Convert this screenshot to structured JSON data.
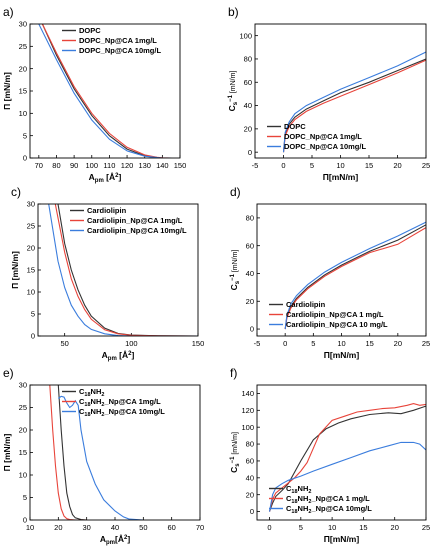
{
  "chart_data": [
    {
      "panel": "a)",
      "type": "line",
      "xlabel": "A",
      "xlabel_sub": "pm",
      "xlabel_unit": " [Å",
      "xlabel_sup": "2",
      "xlabel_close": "]",
      "ylabel": "Π [mN/m]",
      "xlim": [
        65,
        150
      ],
      "ylim": [
        0,
        30
      ],
      "xticks": [
        70,
        80,
        90,
        100,
        110,
        120,
        130,
        140,
        150
      ],
      "yticks": [
        0,
        5,
        10,
        15,
        20,
        25,
        30
      ],
      "legend_position": "top-right",
      "series": [
        {
          "name": "DOPC",
          "color": "#333333",
          "x": [
            72,
            80,
            90,
            100,
            110,
            120,
            130,
            137,
            140,
            145
          ],
          "y": [
            30,
            23,
            15.5,
            9.5,
            5,
            2,
            0.5,
            0.1,
            0,
            0
          ]
        },
        {
          "name": "DOPC_Np@CA 1mg/L",
          "color": "#e8443a",
          "x": [
            72,
            80,
            90,
            100,
            110,
            120,
            130,
            137,
            140,
            145
          ],
          "y": [
            30,
            23.5,
            16,
            10,
            5.5,
            2.4,
            0.7,
            0.15,
            0.05,
            0
          ]
        },
        {
          "name": "DOPC_Np@CA 10mg/L",
          "color": "#3b7ddd",
          "x": [
            70,
            80,
            90,
            100,
            110,
            120,
            130,
            137,
            140,
            145
          ],
          "y": [
            30,
            22,
            14.5,
            8.5,
            4.2,
            1.6,
            0.4,
            0.1,
            0,
            0
          ]
        }
      ]
    },
    {
      "panel": "b)",
      "type": "line",
      "xlabel": "Π[mN/m]",
      "ylabel": "C",
      "ylabel_sub": "s",
      "ylabel_sup": "−1",
      "ylabel_unit": " [mN/m]",
      "xlim": [
        -5,
        25
      ],
      "ylim": [
        -5,
        110
      ],
      "xticks": [
        -5,
        0,
        5,
        10,
        15,
        20,
        25
      ],
      "yticks": [
        0,
        20,
        40,
        60,
        80,
        100
      ],
      "legend_position": "bottom-right",
      "series": [
        {
          "name": "DOPC",
          "color": "#333333",
          "x": [
            0,
            0.3,
            1,
            2,
            4,
            7,
            10,
            15,
            20,
            25
          ],
          "y": [
            0,
            15,
            24,
            30,
            37,
            44,
            51,
            60,
            70,
            80
          ]
        },
        {
          "name": "DOPC_Np@CA 1mg/L",
          "color": "#e8443a",
          "x": [
            0,
            0.3,
            1,
            2,
            4,
            7,
            10,
            15,
            20,
            25
          ],
          "y": [
            0,
            14,
            22,
            28,
            35,
            42,
            48,
            58,
            68,
            79
          ]
        },
        {
          "name": "DOPC_Np@CA 10mg/L",
          "color": "#3b7ddd",
          "x": [
            0,
            0.3,
            1,
            2,
            4,
            7,
            10,
            15,
            20,
            25
          ],
          "y": [
            0,
            17,
            26,
            33,
            40,
            47,
            54,
            64,
            74,
            86
          ]
        }
      ]
    },
    {
      "panel": "c)",
      "type": "line",
      "xlabel": "A",
      "xlabel_sub": "pm",
      "xlabel_unit": " [Å",
      "xlabel_sup": "2",
      "xlabel_close": "]",
      "ylabel": "Π [mN/m]",
      "xlim": [
        30,
        150
      ],
      "ylim": [
        0,
        30
      ],
      "xticks": [
        50,
        100,
        150
      ],
      "yticks": [
        0,
        5,
        10,
        15,
        20,
        25,
        30
      ],
      "legend_position": "top-right",
      "series": [
        {
          "name": "Cardiolipin",
          "color": "#333333",
          "x": [
            45,
            50,
            55,
            60,
            65,
            70,
            80,
            90,
            100,
            120,
            150
          ],
          "y": [
            30,
            21,
            15,
            10.5,
            7,
            4.5,
            1.8,
            0.6,
            0.2,
            0.05,
            0
          ]
        },
        {
          "name": "Cardiolipin_Np@CA 1mg/L",
          "color": "#e8443a",
          "x": [
            43,
            50,
            55,
            60,
            65,
            70,
            80,
            90,
            100,
            120,
            150
          ],
          "y": [
            30,
            19,
            13,
            9,
            6,
            3.8,
            1.4,
            0.5,
            0.15,
            0.05,
            0
          ]
        },
        {
          "name": "Cardiolipin_Np@CA 10mg/L",
          "color": "#3b7ddd",
          "x": [
            38,
            45,
            50,
            55,
            60,
            65,
            70,
            80,
            90,
            100,
            150
          ],
          "y": [
            30,
            17,
            11,
            7,
            4.5,
            2.6,
            1.5,
            0.5,
            0.1,
            0,
            0
          ]
        }
      ]
    },
    {
      "panel": "d)",
      "type": "line",
      "xlabel": "Π[mN/m]",
      "ylabel": "C",
      "ylabel_sub": "s",
      "ylabel_sup": "−1",
      "ylabel_unit": " [mN/m]",
      "xlim": [
        -5,
        25
      ],
      "ylim": [
        -5,
        90
      ],
      "xticks": [
        -5,
        0,
        5,
        10,
        15,
        20,
        25
      ],
      "yticks": [
        0,
        20,
        40,
        60,
        80
      ],
      "legend_position": "bottom-right",
      "series": [
        {
          "name": "Cardiolipin",
          "color": "#333333",
          "x": [
            0,
            0.3,
            1,
            2,
            4,
            7,
            10,
            15,
            20,
            25
          ],
          "y": [
            0,
            9,
            16,
            22,
            30,
            39,
            46,
            56,
            64,
            75
          ]
        },
        {
          "name": "Cardiolipin_Np@CA 1 mg/L",
          "color": "#e8443a",
          "x": [
            0,
            0.3,
            1,
            2,
            4,
            7,
            10,
            15,
            20,
            25
          ],
          "y": [
            0,
            8,
            15,
            21,
            29,
            38,
            45,
            55,
            61,
            73
          ]
        },
        {
          "name": "Cardiolipin_Np@CA 10 mg/L",
          "color": "#3b7ddd",
          "x": [
            0,
            0.3,
            1,
            2,
            4,
            7,
            10,
            15,
            20,
            25
          ],
          "y": [
            0,
            10,
            18,
            24,
            32,
            41,
            48,
            58,
            67,
            77
          ]
        }
      ]
    },
    {
      "panel": "e)",
      "type": "line",
      "xlabel": "A",
      "xlabel_sub": "pm",
      "xlabel_unit": "[Å",
      "xlabel_sup": "2",
      "xlabel_close": "]",
      "ylabel": "Π [mN/m]",
      "xlim": [
        10,
        70
      ],
      "ylim": [
        0,
        30
      ],
      "xticks": [
        10,
        20,
        30,
        40,
        50,
        60,
        70
      ],
      "yticks": [
        0,
        5,
        10,
        15,
        20,
        25,
        30
      ],
      "legend_position": "top-right",
      "series": [
        {
          "name": "C18NH2",
          "label_parts": [
            "C",
            "18",
            "NH",
            "2",
            ""
          ],
          "color": "#333333",
          "x": [
            20,
            21,
            22,
            23,
            24,
            25,
            26,
            28,
            30
          ],
          "y": [
            30,
            20,
            12,
            6,
            3,
            1.2,
            0.5,
            0.1,
            0
          ]
        },
        {
          "name": "C18NH2_Np@CA 1mg/L",
          "label_parts": [
            "C",
            "18",
            "NH",
            "2",
            "_Np@CA 1mg/L"
          ],
          "color": "#e8443a",
          "x": [
            17,
            18,
            19,
            20,
            21,
            22,
            23,
            24,
            26,
            30
          ],
          "y": [
            30,
            20,
            12,
            6,
            2.5,
            0.9,
            0.3,
            0.1,
            0,
            0
          ]
        },
        {
          "name": "C18NH2_Np@CA 10mg/L",
          "label_parts": [
            "C",
            "18",
            "NH",
            "2",
            "_Np@CA 10mg/L"
          ],
          "color": "#3b7ddd",
          "x": [
            20,
            21,
            22,
            23,
            24,
            25,
            26,
            27,
            28,
            30,
            33,
            36,
            40,
            43,
            45,
            50
          ],
          "y": [
            27,
            27.5,
            27.3,
            26,
            25,
            25.5,
            26.5,
            25.5,
            20,
            13,
            8,
            4.5,
            2,
            0.7,
            0.2,
            0
          ]
        }
      ]
    },
    {
      "panel": "f)",
      "type": "line",
      "xlabel": "Π[mN/m]",
      "ylabel": "C",
      "ylabel_sub": "s",
      "ylabel_sup": "−1",
      "ylabel_unit": " [mN/m]",
      "xlim": [
        -2,
        25
      ],
      "ylim": [
        -10,
        150
      ],
      "xticks": [
        0,
        5,
        10,
        15,
        20,
        25
      ],
      "yticks": [
        0,
        20,
        40,
        60,
        80,
        100,
        120,
        140
      ],
      "legend_position": "bottom-right",
      "series": [
        {
          "name": "C18NH2",
          "label_parts": [
            "C",
            "18",
            "NH",
            "2",
            ""
          ],
          "color": "#333333",
          "x": [
            0,
            0.5,
            1,
            2,
            3,
            5,
            7,
            9,
            11,
            13,
            16,
            19,
            21,
            23,
            25
          ],
          "y": [
            0,
            10,
            18,
            25,
            33,
            60,
            85,
            98,
            105,
            110,
            115,
            117,
            116,
            120,
            125
          ]
        },
        {
          "name": "C18NH2_Np@CA 1 mg/L",
          "label_parts": [
            "C",
            "18",
            "NH",
            "2",
            "_Np@CA 1 mg/L"
          ],
          "color": "#e8443a",
          "x": [
            0,
            0.5,
            1,
            2,
            3,
            4,
            5,
            6,
            7,
            8,
            10,
            12,
            14,
            16,
            18,
            20,
            22,
            23,
            24,
            25
          ],
          "y": [
            0,
            15,
            22,
            28,
            34,
            40,
            48,
            58,
            75,
            92,
            108,
            113,
            118,
            120,
            122,
            123,
            126,
            128,
            126,
            127
          ]
        },
        {
          "name": "C18NH2_Np@CA 10mg/L",
          "label_parts": [
            "C",
            "18",
            "NH",
            "2",
            "_Np@CA 10mg/L"
          ],
          "color": "#3b7ddd",
          "x": [
            0,
            0.5,
            1,
            2,
            3,
            5,
            7,
            10,
            13,
            16,
            19,
            21,
            23,
            24,
            25
          ],
          "y": [
            0,
            20,
            28,
            33,
            37,
            42,
            48,
            56,
            64,
            72,
            78,
            82,
            82,
            80,
            73
          ]
        }
      ]
    }
  ]
}
